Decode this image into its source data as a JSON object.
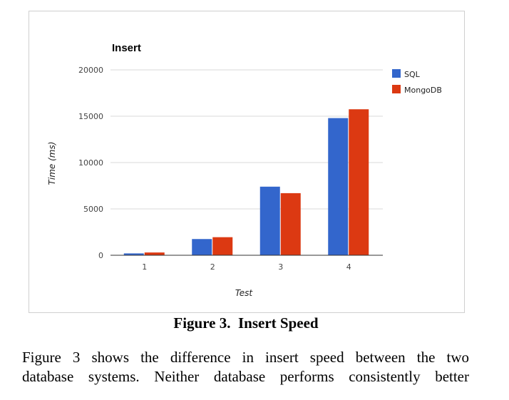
{
  "chart_data": {
    "type": "bar",
    "title": "Insert",
    "xlabel": "Test",
    "ylabel": "Time (ms)",
    "categories": [
      "1",
      "2",
      "3",
      "4"
    ],
    "series": [
      {
        "name": "SQL",
        "color": "#3366cc",
        "values": [
          200,
          1750,
          7400,
          14800
        ]
      },
      {
        "name": "MongoDB",
        "color": "#dc3912",
        "values": [
          300,
          1950,
          6700,
          15750
        ]
      }
    ],
    "yticks": [
      "0",
      "5000",
      "10000",
      "15000",
      "20000"
    ],
    "ylim": [
      0,
      20000
    ],
    "grid": true,
    "legend": "right"
  },
  "caption": "Figure 3.  Insert Speed",
  "paragraph": {
    "line1": "Figure 3 shows the difference in insert speed between the two",
    "line2": "database systems. Neither database performs consistently better"
  }
}
